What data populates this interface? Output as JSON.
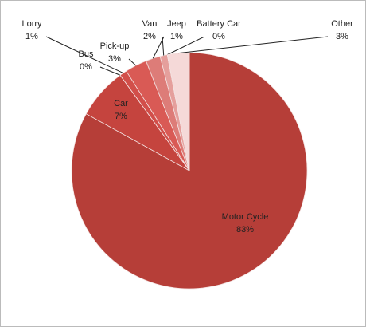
{
  "chart_data": {
    "type": "pie",
    "categories": [
      "Motor Cycle",
      "Car",
      "Bus",
      "Lorry",
      "Pick-up",
      "Van",
      "Jeep",
      "Battery Car",
      "Other"
    ],
    "values": [
      83,
      7,
      0,
      1,
      3,
      2,
      1,
      0,
      3
    ],
    "value_labels": [
      "83%",
      "7%",
      "0%",
      "1%",
      "3%",
      "2%",
      "1%",
      "0%",
      "3%"
    ],
    "colors": [
      "#b63e38",
      "#c5443e",
      "#c94c46",
      "#d24f4a",
      "#d95a55",
      "#dd7c78",
      "#e59f9c",
      "#eec3c1",
      "#f5d9d8"
    ]
  }
}
